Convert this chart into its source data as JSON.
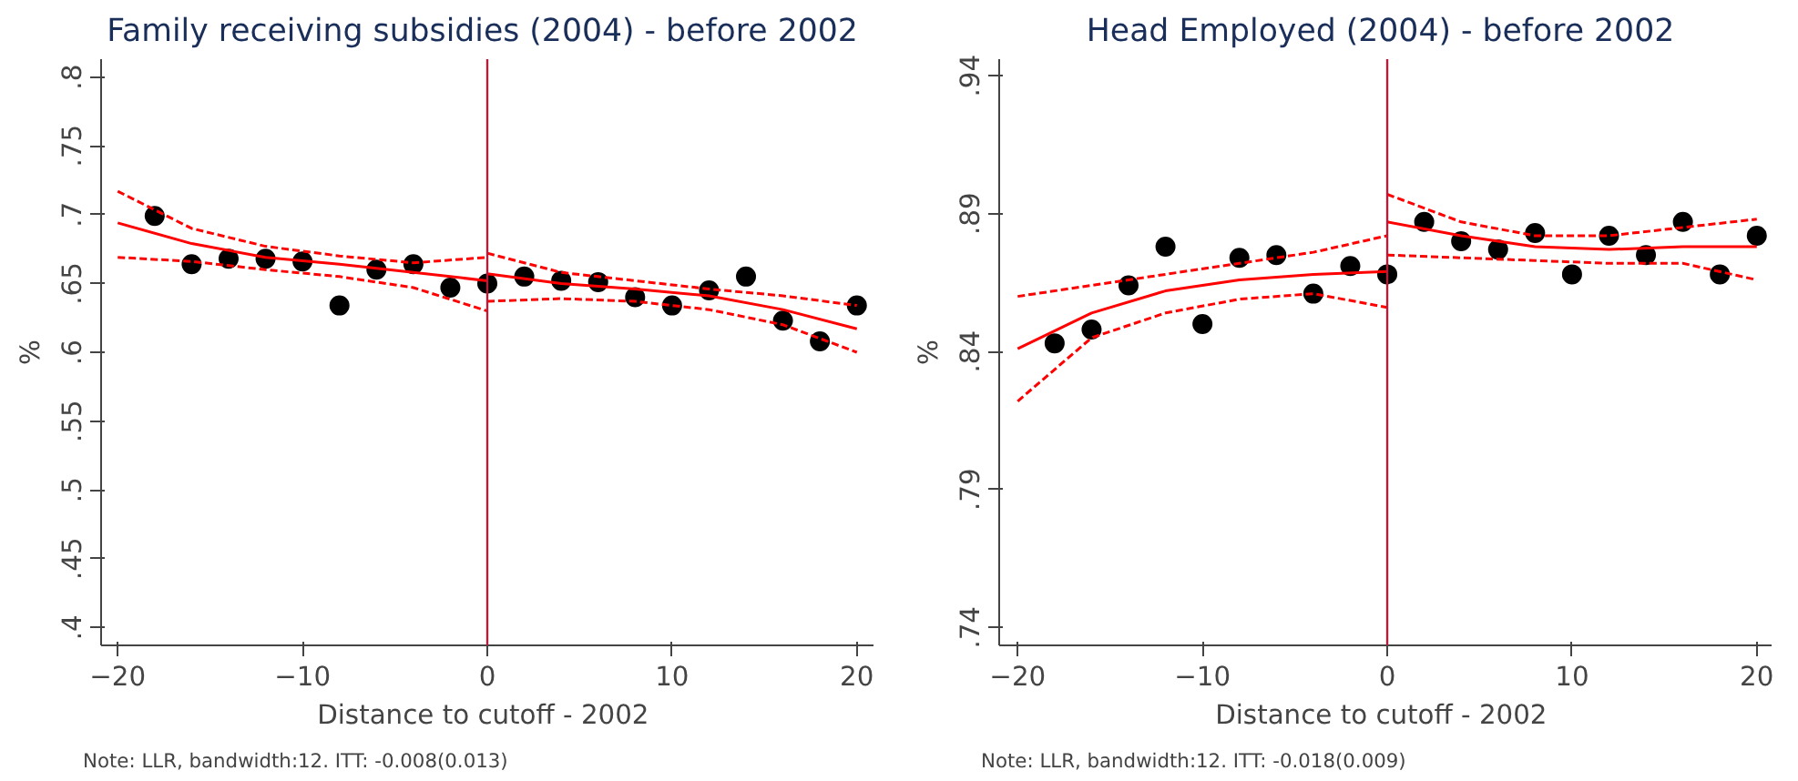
{
  "chart_data": [
    {
      "type": "scatter",
      "title": "Family receiving subsidies  (2004) - before 2002",
      "xlabel": "Distance to cutoff  - 2002",
      "ylabel": "%",
      "annotations": [
        "Note: LLR, bandwidth:12. ITT: -0.008(0.013)"
      ],
      "xlim": [
        -20.9,
        20.9
      ],
      "ylim": [
        0.387,
        0.813
      ],
      "xticks": [
        -20,
        -10,
        0,
        10,
        20
      ],
      "yticks": [
        {
          "value": 0.4,
          "label": ".4"
        },
        {
          "value": 0.45,
          "label": ".45"
        },
        {
          "value": 0.5,
          "label": ".5"
        },
        {
          "value": 0.55,
          "label": ".55"
        },
        {
          "value": 0.6,
          "label": ".6"
        },
        {
          "value": 0.65,
          "label": ".65"
        },
        {
          "value": 0.7,
          "label": ".7"
        },
        {
          "value": 0.75,
          "label": ".75"
        },
        {
          "value": 0.8,
          "label": ".8"
        }
      ],
      "grid": false,
      "ref_lines": [
        {
          "axis": "x",
          "value": 0,
          "color": "#b01e3c",
          "line_style": "solid"
        }
      ],
      "series": [
        {
          "marker": "circle",
          "color": "#000000",
          "x": [
            -18,
            -16,
            -14,
            -12,
            -10,
            -8,
            -6,
            -4,
            -2,
            0,
            2,
            4,
            6,
            8,
            10,
            12,
            14,
            16,
            18,
            20
          ],
          "values": [
            0.699,
            0.664,
            0.668,
            0.668,
            0.666,
            0.634,
            0.66,
            0.664,
            0.647,
            0.65,
            0.655,
            0.652,
            0.651,
            0.64,
            0.634,
            0.645,
            0.655,
            0.623,
            0.608,
            0.634
          ]
        },
        {
          "type": "line",
          "color": "#ff0000",
          "line_style": "solid",
          "x": [
            -20,
            -16,
            -12,
            -8,
            -4,
            0
          ],
          "values": [
            0.694,
            0.679,
            0.669,
            0.664,
            0.658,
            0.652
          ]
        },
        {
          "type": "line",
          "color": "#ff0000",
          "line_style": "dashed",
          "x": [
            -20,
            -16,
            -12,
            -8,
            -4,
            0
          ],
          "values": [
            0.717,
            0.69,
            0.677,
            0.67,
            0.665,
            0.669
          ]
        },
        {
          "type": "line",
          "color": "#ff0000",
          "line_style": "dashed",
          "x": [
            -20,
            -16,
            -12,
            -8,
            -4,
            0
          ],
          "values": [
            0.669,
            0.666,
            0.66,
            0.655,
            0.647,
            0.63
          ]
        },
        {
          "type": "line",
          "color": "#ff0000",
          "line_style": "solid",
          "x": [
            0,
            4,
            8,
            12,
            16,
            20
          ],
          "values": [
            0.657,
            0.65,
            0.646,
            0.641,
            0.631,
            0.617
          ]
        },
        {
          "type": "line",
          "color": "#ff0000",
          "line_style": "dashed",
          "x": [
            0,
            4,
            8,
            12,
            16,
            20
          ],
          "values": [
            0.672,
            0.658,
            0.652,
            0.646,
            0.641,
            0.634
          ]
        },
        {
          "type": "line",
          "color": "#ff0000",
          "line_style": "dashed",
          "x": [
            0,
            4,
            8,
            12,
            16,
            20
          ],
          "values": [
            0.637,
            0.639,
            0.637,
            0.631,
            0.62,
            0.6
          ]
        }
      ]
    },
    {
      "type": "scatter",
      "title": "Head Employed  (2004) - before 2002",
      "xlabel": "Distance to cutoff  - 2002",
      "ylabel": "%",
      "annotations": [
        "Note: LLR, bandwidth:12. ITT: -0.018(0.009)"
      ],
      "xlim": [
        -21,
        20.8
      ],
      "ylim": [
        0.7335,
        0.946
      ],
      "xticks": [
        -20,
        -10,
        0,
        10,
        20
      ],
      "yticks": [
        {
          "value": 0.74,
          "label": ".74"
        },
        {
          "value": 0.79,
          "label": ".79"
        },
        {
          "value": 0.84,
          "label": ".84"
        },
        {
          "value": 0.89,
          "label": ".89"
        },
        {
          "value": 0.94,
          "label": ".94"
        }
      ],
      "grid": false,
      "ref_lines": [
        {
          "axis": "x",
          "value": 0,
          "color": "#b01e3c",
          "line_style": "solid"
        }
      ],
      "series": [
        {
          "marker": "circle",
          "color": "#000000",
          "x": [
            -18,
            -16,
            -14,
            -12,
            -10,
            -8,
            -6,
            -4,
            -2,
            0,
            2,
            4,
            6,
            8,
            10,
            12,
            14,
            16,
            18,
            20
          ],
          "values": [
            0.843,
            0.848,
            0.864,
            0.878,
            0.85,
            0.874,
            0.875,
            0.861,
            0.871,
            0.868,
            0.887,
            0.88,
            0.877,
            0.883,
            0.868,
            0.882,
            0.875,
            0.887,
            0.868,
            0.882
          ]
        },
        {
          "type": "line",
          "color": "#ff0000",
          "line_style": "solid",
          "x": [
            -20,
            -16,
            -12,
            -8,
            -4,
            0
          ],
          "values": [
            0.841,
            0.854,
            0.862,
            0.866,
            0.868,
            0.869
          ]
        },
        {
          "type": "line",
          "color": "#ff0000",
          "line_style": "dashed",
          "x": [
            -20,
            -16,
            -12,
            -8,
            -4,
            0
          ],
          "values": [
            0.86,
            0.864,
            0.868,
            0.872,
            0.876,
            0.882
          ]
        },
        {
          "type": "line",
          "color": "#ff0000",
          "line_style": "dashed",
          "x": [
            -20,
            -16,
            -12,
            -8,
            -4,
            0
          ],
          "values": [
            0.822,
            0.845,
            0.854,
            0.859,
            0.861,
            0.856
          ]
        },
        {
          "type": "line",
          "color": "#ff0000",
          "line_style": "solid",
          "x": [
            0,
            4,
            8,
            12,
            16,
            20
          ],
          "values": [
            0.887,
            0.882,
            0.878,
            0.877,
            0.878,
            0.878
          ]
        },
        {
          "type": "line",
          "color": "#ff0000",
          "line_style": "dashed",
          "x": [
            0,
            4,
            8,
            12,
            16,
            20
          ],
          "values": [
            0.897,
            0.887,
            0.882,
            0.882,
            0.885,
            0.888
          ]
        },
        {
          "type": "line",
          "color": "#ff0000",
          "line_style": "dashed",
          "x": [
            0,
            4,
            8,
            12,
            16,
            20
          ],
          "values": [
            0.875,
            0.874,
            0.873,
            0.872,
            0.872,
            0.866
          ]
        }
      ]
    }
  ]
}
